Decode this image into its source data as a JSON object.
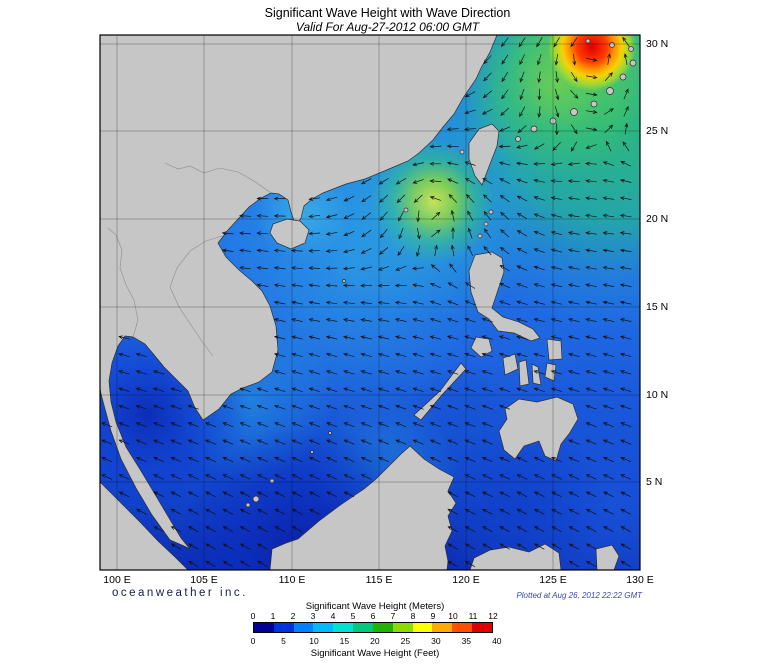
{
  "title": "Significant Wave Height with Wave Direction",
  "subtitle": "Valid For Aug-27-2012 06:00 GMT",
  "branding": "oceanweather inc.",
  "plotted_at": "Plotted at Aug 26, 2012 22:22 GMT",
  "axes": {
    "longitude_labels": [
      "100 E",
      "105 E",
      "110 E",
      "115 E",
      "120 E",
      "125 E",
      "130 E"
    ],
    "latitude_labels": [
      "30 N",
      "25 N",
      "20 N",
      "15 N",
      "10 N",
      "5 N"
    ]
  },
  "legend": {
    "meters_label": "Significant Wave Height (Meters)",
    "feet_label": "Significant Wave Height (Feet)",
    "meters_ticks": [
      "0",
      "1",
      "2",
      "3",
      "4",
      "5",
      "6",
      "7",
      "8",
      "9",
      "10",
      "11",
      "12"
    ],
    "feet_ticks": [
      "0",
      "5",
      "10",
      "15",
      "20",
      "25",
      "30",
      "35",
      "40"
    ],
    "colors": [
      "#000096",
      "#0032e1",
      "#0082ff",
      "#00b9ff",
      "#00e1d2",
      "#00c87d",
      "#1eb400",
      "#8cdc00",
      "#ffff00",
      "#ffaa00",
      "#ff5000",
      "#e10000"
    ]
  },
  "chart_data": {
    "type": "heatmap",
    "title": "Significant Wave Height with Wave Direction",
    "valid_for": "Aug-27-2012 06:00 GMT",
    "plotted_at": "Aug 26, 2012 22:22 GMT",
    "lon_range_deg_e": [
      99,
      130
    ],
    "lat_range_deg_n": [
      0,
      30.5
    ],
    "grid_interval_deg": 5,
    "units": [
      "Meters",
      "Feet"
    ],
    "meters_scale": [
      0,
      1,
      2,
      3,
      4,
      5,
      6,
      7,
      8,
      9,
      10,
      11,
      12
    ],
    "feet_scale": [
      0,
      5,
      10,
      15,
      20,
      25,
      30,
      35,
      40
    ],
    "overlay": "wave direction arrows",
    "features": [
      {
        "name": "peak-wave-cell",
        "lon_e": 127.5,
        "lat_n": 29.8,
        "height_m": "10-12"
      },
      {
        "name": "high-swell-northeast-of-taiwan",
        "lon_e": 125,
        "lat_n": 27,
        "height_m": "4-6"
      },
      {
        "name": "secondary-high-luzon-strait",
        "lon_e": 118,
        "lat_n": 21,
        "height_m": "6-8"
      },
      {
        "name": "south-china-sea-general",
        "height_m": "1-3"
      },
      {
        "name": "gulf-of-thailand",
        "height_m": "0-1"
      },
      {
        "name": "equatorial-waters",
        "height_m": "0-1"
      }
    ]
  }
}
